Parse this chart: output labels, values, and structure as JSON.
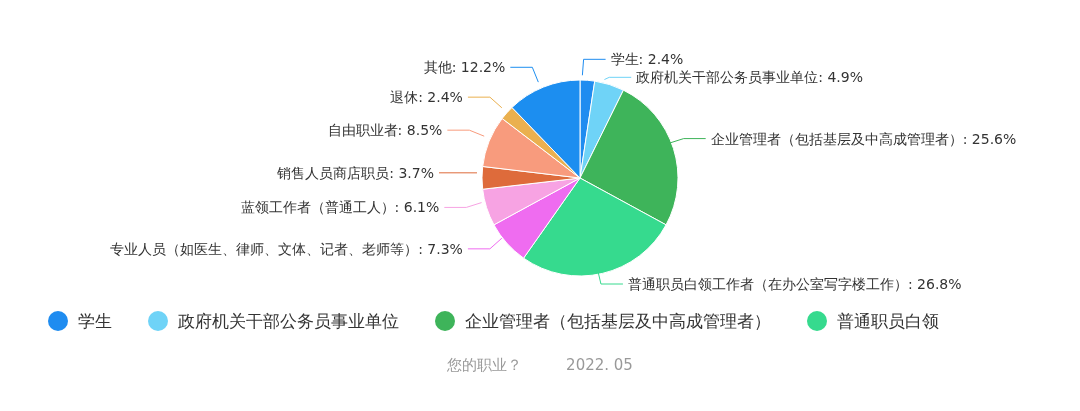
{
  "chart_data": {
    "type": "pie",
    "categories": [
      "学生",
      "政府机关干部公务员事业单位",
      "企业管理者（包括基层及中高成管理者）",
      "普通职员白领",
      null,
      null,
      null,
      null,
      null,
      null
    ],
    "values": [
      2.4,
      4.9,
      25.6,
      26.8,
      7.3,
      6.1,
      3.7,
      8.5,
      2.4,
      12.2
    ],
    "value_labels": [
      "学生: 2.4%",
      "政府机关干部公务员事业单位: 4.9%",
      "企业管理者（包括基层及中高成管理者）: 25.6%",
      "普通职员白领工作者（在办公室写字楼工作）: 26.8%",
      "专业人员（如医生、律师、文体、记者、老师等）: 7.3%",
      "蓝领工作者（普通工人）: 6.1%",
      "销售人员商店职员: 3.7%",
      "自由职业者: 8.5%",
      "退休: 2.4%",
      "其他: 12.2%"
    ],
    "colors": [
      "#1f8cf0",
      "#6fd3f7",
      "#3eb45a",
      "#36da8e",
      "#ef6cf0",
      "#f7a3e3",
      "#de6b3b",
      "#f89b7d",
      "#eab04f",
      "#1c8ef0"
    ],
    "legend": "bottom",
    "annotations": [
      "您的职业？",
      "2022. 05"
    ]
  }
}
